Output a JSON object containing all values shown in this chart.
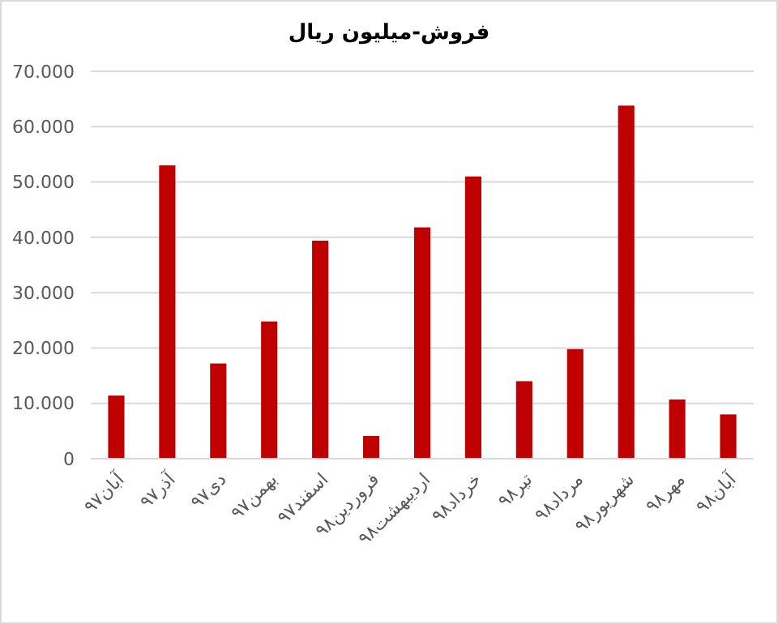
{
  "chart_data": {
    "type": "bar",
    "title": "فروش-میلیون  ریال",
    "categories": [
      "آبان۹۷",
      "آذر۹۷",
      "دی۹۷",
      "بهمن۹۷",
      "اسفند۹۷",
      "فروردین۹۸",
      "اردیبهشت۹۸",
      "خرداد۹۸",
      "تیر۹۸",
      "مرداد۹۸",
      "شهریور۹۸",
      "مهر۹۸",
      "آبان۹۸"
    ],
    "values": [
      11400,
      53000,
      17200,
      24800,
      39400,
      4100,
      41800,
      51000,
      14000,
      19800,
      63800,
      10700,
      8000
    ],
    "color": "#c00000",
    "ylim": [
      0,
      70000
    ],
    "yticks": [
      {
        "value": 0,
        "label": "0"
      },
      {
        "value": 10000,
        "label": "10.000"
      },
      {
        "value": 20000,
        "label": "20.000"
      },
      {
        "value": 30000,
        "label": "30.000"
      },
      {
        "value": 40000,
        "label": "40.000"
      },
      {
        "value": 50000,
        "label": "50.000"
      },
      {
        "value": 60000,
        "label": "60.000"
      },
      {
        "value": 70000,
        "label": "70.000"
      }
    ],
    "grid": "y"
  }
}
